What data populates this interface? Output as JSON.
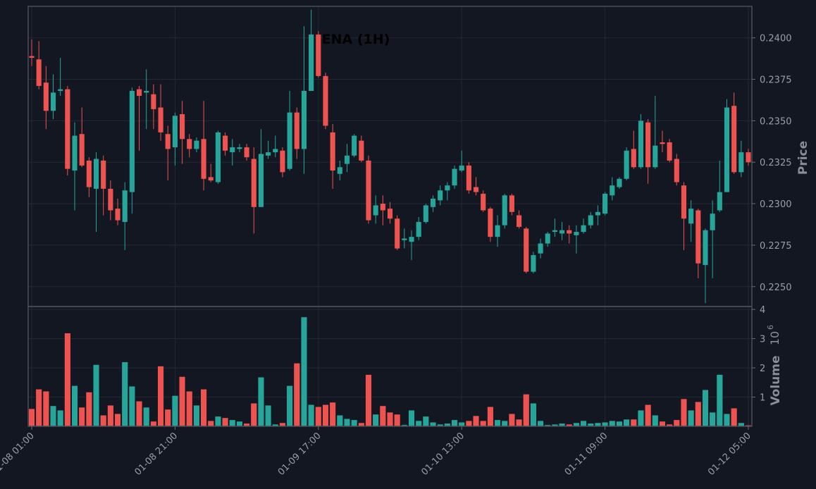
{
  "chart_data": {
    "type": "candlestick",
    "title": "ENA (1H)",
    "ylabel": "Price",
    "categories": [
      "01-08 01:00",
      null,
      null,
      null,
      null,
      null,
      null,
      null,
      null,
      null,
      null,
      null,
      null,
      null,
      null,
      null,
      null,
      null,
      null,
      null,
      "01-08 21:00",
      null,
      null,
      null,
      null,
      null,
      null,
      null,
      null,
      null,
      null,
      null,
      null,
      null,
      null,
      null,
      null,
      null,
      null,
      null,
      "01-09 17:00",
      null,
      null,
      null,
      null,
      null,
      null,
      null,
      null,
      null,
      null,
      null,
      null,
      null,
      null,
      null,
      null,
      null,
      null,
      null,
      "01-10 13:00",
      null,
      null,
      null,
      null,
      null,
      null,
      null,
      null,
      null,
      null,
      null,
      null,
      null,
      null,
      null,
      null,
      null,
      null,
      null,
      "01-11 09:00",
      null,
      null,
      null,
      null,
      null,
      null,
      null,
      null,
      null,
      null,
      null,
      null,
      null,
      null,
      null,
      null,
      null,
      null,
      null,
      "01-12 05:00"
    ],
    "open": [
      0.2389,
      0.2387,
      0.2373,
      0.2356,
      0.2368,
      0.2369,
      0.232,
      0.2342,
      0.2326,
      0.2309,
      0.2326,
      0.2309,
      0.2297,
      0.2289,
      0.2307,
      0.2369,
      0.2367,
      0.2366,
      0.2358,
      0.2342,
      0.2334,
      0.2354,
      0.2339,
      0.2333,
      0.2339,
      0.2316,
      0.2313,
      0.2341,
      0.2331,
      0.2333,
      0.2334,
      0.2327,
      0.2298,
      0.2329,
      0.2331,
      0.2332,
      0.2321,
      0.2355,
      0.2333,
      0.2368,
      0.2402,
      0.2377,
      0.2343,
      0.2318,
      0.2324,
      0.2329,
      0.2338,
      0.2326,
      0.2293,
      0.23,
      0.2297,
      0.2291,
      0.2278,
      0.2277,
      0.228,
      0.2289,
      0.2298,
      0.2302,
      0.2308,
      0.2311,
      0.232,
      0.2323,
      0.231,
      0.2306,
      0.2297,
      0.228,
      0.2287,
      0.2305,
      0.2293,
      0.2285,
      0.2259,
      0.227,
      0.2276,
      0.2283,
      0.2282,
      0.2284,
      0.2281,
      0.2283,
      0.2287,
      0.2293,
      0.2294,
      0.2305,
      0.231,
      0.2315,
      0.2333,
      0.2322,
      0.2349,
      0.2322,
      0.2337,
      0.2337,
      0.2327,
      0.2311,
      0.2288,
      0.2296,
      0.2263,
      0.2284,
      0.2296,
      0.2307,
      0.2359,
      0.2319,
      0.2331
    ],
    "high": [
      0.2399,
      0.2398,
      0.2383,
      0.2378,
      0.2388,
      0.2371,
      0.2349,
      0.2358,
      0.2328,
      0.2331,
      0.2329,
      0.2314,
      0.2303,
      0.2313,
      0.237,
      0.2371,
      0.2381,
      0.2372,
      0.2372,
      0.2347,
      0.2355,
      0.2362,
      0.2342,
      0.234,
      0.2362,
      0.2324,
      0.2344,
      0.2343,
      0.2339,
      0.2336,
      0.2336,
      0.2334,
      0.2345,
      0.2338,
      0.2341,
      0.2334,
      0.2368,
      0.2358,
      0.2407,
      0.2417,
      0.2404,
      0.2379,
      0.2348,
      0.2326,
      0.2336,
      0.2342,
      0.2341,
      0.2329,
      0.2305,
      0.2305,
      0.2301,
      0.2293,
      0.2285,
      0.2284,
      0.2292,
      0.23,
      0.2305,
      0.2311,
      0.2313,
      0.2323,
      0.2332,
      0.2325,
      0.2316,
      0.2308,
      0.2298,
      0.2293,
      0.2306,
      0.2306,
      0.2296,
      0.2286,
      0.2271,
      0.2279,
      0.2283,
      0.2291,
      0.2289,
      0.2287,
      0.2287,
      0.2291,
      0.2295,
      0.2299,
      0.2307,
      0.2316,
      0.2316,
      0.2334,
      0.2344,
      0.2354,
      0.2351,
      0.2365,
      0.2344,
      0.2339,
      0.233,
      0.2313,
      0.2302,
      0.2297,
      0.2285,
      0.2302,
      0.2326,
      0.2363,
      0.2367,
      0.2338,
      0.2333
    ],
    "low": [
      0.2383,
      0.2369,
      0.2345,
      0.2351,
      0.2365,
      0.2317,
      0.2296,
      0.2322,
      0.2304,
      0.2283,
      0.2293,
      0.229,
      0.2287,
      0.2272,
      0.2294,
      0.2332,
      0.2345,
      0.2345,
      0.2338,
      0.2314,
      0.2323,
      0.2324,
      0.2328,
      0.2331,
      0.2308,
      0.2313,
      0.2312,
      0.2329,
      0.2323,
      0.2331,
      0.2326,
      0.2282,
      0.2298,
      0.2327,
      0.2328,
      0.2316,
      0.232,
      0.2327,
      0.2318,
      0.2368,
      0.2376,
      0.2345,
      0.2309,
      0.2314,
      0.2319,
      0.2328,
      0.2325,
      0.2288,
      0.2288,
      0.2287,
      0.2288,
      0.2272,
      0.2273,
      0.2266,
      0.2278,
      0.2288,
      0.2295,
      0.2299,
      0.2302,
      0.2309,
      0.2319,
      0.2306,
      0.2305,
      0.2295,
      0.2277,
      0.2274,
      0.2285,
      0.2293,
      0.2285,
      0.2258,
      0.2258,
      0.2267,
      0.2274,
      0.228,
      0.2278,
      0.2276,
      0.227,
      0.2282,
      0.2285,
      0.2287,
      0.2293,
      0.2302,
      0.2309,
      0.2314,
      0.2321,
      0.2321,
      0.2312,
      0.2321,
      0.2331,
      0.2325,
      0.2311,
      0.2272,
      0.2277,
      0.2255,
      0.224,
      0.2255,
      0.2295,
      0.2307,
      0.2318,
      0.2316,
      0.2323
    ],
    "close": [
      0.2388,
      0.2371,
      0.2356,
      0.2367,
      0.2369,
      0.2321,
      0.2341,
      0.2323,
      0.231,
      0.2327,
      0.2309,
      0.2296,
      0.229,
      0.2308,
      0.2368,
      0.2365,
      0.2368,
      0.2357,
      0.2343,
      0.2333,
      0.2353,
      0.2339,
      0.2333,
      0.2338,
      0.2315,
      0.2314,
      0.2343,
      0.2332,
      0.2334,
      0.2334,
      0.2328,
      0.2298,
      0.233,
      0.2331,
      0.2333,
      0.2319,
      0.2355,
      0.2333,
      0.2368,
      0.2402,
      0.2377,
      0.2347,
      0.232,
      0.2322,
      0.2329,
      0.2341,
      0.2326,
      0.229,
      0.2299,
      0.2296,
      0.2291,
      0.2273,
      0.2279,
      0.228,
      0.2289,
      0.2299,
      0.2303,
      0.2308,
      0.2311,
      0.2321,
      0.2323,
      0.2308,
      0.2307,
      0.2296,
      0.228,
      0.2287,
      0.2305,
      0.2295,
      0.2286,
      0.2259,
      0.2269,
      0.2276,
      0.2282,
      0.2284,
      0.2284,
      0.2282,
      0.2283,
      0.2287,
      0.2293,
      0.2295,
      0.2306,
      0.2311,
      0.2315,
      0.2332,
      0.2322,
      0.235,
      0.2322,
      0.2335,
      0.2336,
      0.2326,
      0.2313,
      0.2291,
      0.2297,
      0.2264,
      0.2284,
      0.2294,
      0.2307,
      0.2358,
      0.2319,
      0.2331,
      0.2325
    ],
    "ylim": [
      0.2238,
      0.2419
    ],
    "yticks": [
      {
        "value": 0.225,
        "label": "0.2250"
      },
      0.2275,
      {
        "value": 0.23,
        "label": "0.2300"
      },
      0.2325,
      {
        "value": 0.235,
        "label": "0.2350"
      },
      0.2375,
      {
        "value": 0.24,
        "label": "0.2400"
      }
    ],
    "grid": true,
    "colors": {
      "up": "#26a69a",
      "down": "#ef5350"
    },
    "volume": {
      "ylabel": "Volume",
      "scale_base": "10",
      "scale_exponent": "6",
      "values": [
        0.6,
        1.27,
        1.2,
        0.7,
        0.55,
        3.19,
        1.39,
        0.65,
        1.17,
        2.11,
        0.38,
        0.72,
        0.43,
        2.2,
        1.37,
        0.86,
        0.65,
        0.17,
        2.06,
        0.58,
        1.05,
        1.7,
        1.2,
        0.72,
        1.27,
        0.19,
        0.34,
        0.29,
        0.22,
        0.17,
        0.1,
        0.79,
        1.68,
        0.72,
        0.07,
        0.12,
        1.39,
        2.16,
        3.74,
        0.74,
        0.67,
        0.74,
        0.82,
        0.38,
        0.26,
        0.22,
        0.12,
        1.77,
        0.41,
        0.7,
        0.48,
        0.41,
        0.05,
        0.55,
        0.19,
        0.34,
        0.14,
        0.07,
        0.1,
        0.22,
        0.14,
        0.19,
        0.36,
        0.19,
        0.67,
        0.22,
        0.19,
        0.43,
        0.24,
        1.1,
        0.79,
        0.19,
        0.05,
        0.07,
        0.1,
        0.07,
        0.12,
        0.19,
        0.1,
        0.12,
        0.14,
        0.19,
        0.17,
        0.24,
        0.24,
        0.55,
        0.74,
        0.38,
        0.17,
        0.07,
        0.22,
        0.94,
        0.55,
        0.84,
        1.25,
        0.48,
        1.77,
        0.43,
        0.62,
        0.12,
        0.04
      ],
      "ylim": [
        0,
        4.1
      ],
      "yticks": [
        1,
        2,
        3,
        4
      ]
    }
  }
}
